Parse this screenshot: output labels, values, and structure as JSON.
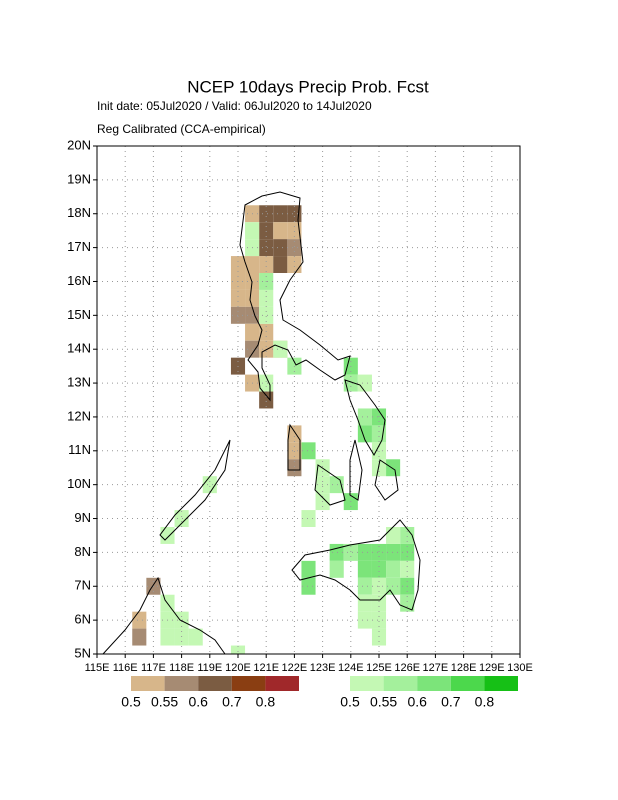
{
  "map": {
    "title": "NCEP 10days Precip Prob. Fcst",
    "subtitle": [
      "Init date: 05Jul2020 / Valid: 06Jul2020 to 14Jul2020",
      "Reg Calibrated (CCA-empirical)"
    ],
    "xlim": [
      115,
      130
    ],
    "ylim": [
      5,
      20
    ],
    "xticks": [
      {
        "value": 115,
        "label": "115E"
      },
      {
        "value": 116,
        "label": "116E"
      },
      {
        "value": 117,
        "label": "117E"
      },
      {
        "value": 118,
        "label": "118E"
      },
      {
        "value": 119,
        "label": "119E"
      },
      {
        "value": 120,
        "label": "120E"
      },
      {
        "value": 121,
        "label": "121E"
      },
      {
        "value": 122,
        "label": "122E"
      },
      {
        "value": 123,
        "label": "123E"
      },
      {
        "value": 124,
        "label": "124E"
      },
      {
        "value": 125,
        "label": "125E"
      },
      {
        "value": 126,
        "label": "126E"
      },
      {
        "value": 127,
        "label": "127E"
      },
      {
        "value": 128,
        "label": "128E"
      },
      {
        "value": 129,
        "label": "129E"
      },
      {
        "value": 130,
        "label": "130E"
      }
    ],
    "yticks": [
      {
        "value": 5,
        "label": "5N"
      },
      {
        "value": 6,
        "label": "6N"
      },
      {
        "value": 7,
        "label": "7N"
      },
      {
        "value": 8,
        "label": "8N"
      },
      {
        "value": 9,
        "label": "9N"
      },
      {
        "value": 10,
        "label": "10N"
      },
      {
        "value": 11,
        "label": "11N"
      },
      {
        "value": 12,
        "label": "12N"
      },
      {
        "value": 13,
        "label": "13N"
      },
      {
        "value": 14,
        "label": "14N"
      },
      {
        "value": 15,
        "label": "15N"
      },
      {
        "value": 16,
        "label": "16N"
      },
      {
        "value": 17,
        "label": "17N"
      },
      {
        "value": 18,
        "label": "18N"
      },
      {
        "value": 19,
        "label": "19N"
      },
      {
        "value": 20,
        "label": "20N"
      }
    ],
    "grid": true,
    "levels": [
      0.5,
      0.55,
      0.6,
      0.7,
      0.8
    ],
    "below": {
      "colors": [
        "#d7b68a",
        "#a68b73",
        "#7b5c42",
        "#8a3e12",
        "#a0282a"
      ],
      "cells": [
        [
          120.5,
          18,
          0.5
        ],
        [
          121,
          18,
          0.6
        ],
        [
          121.5,
          18,
          0.6
        ],
        [
          122,
          18,
          0.6
        ],
        [
          121,
          17.5,
          0.6
        ],
        [
          121.5,
          17.5,
          0.5
        ],
        [
          122,
          17.5,
          0.5
        ],
        [
          121,
          17,
          0.6
        ],
        [
          121.5,
          17,
          0.6
        ],
        [
          122,
          17,
          0.55
        ],
        [
          120,
          16.5,
          0.5
        ],
        [
          120.5,
          16.5,
          0.5
        ],
        [
          121,
          16.5,
          0.5
        ],
        [
          121.5,
          16.5,
          0.6
        ],
        [
          122,
          16.5,
          0.5
        ],
        [
          120,
          16,
          0.5
        ],
        [
          120.5,
          16,
          0.5
        ],
        [
          120,
          15.5,
          0.5
        ],
        [
          120.5,
          15.5,
          0.5
        ],
        [
          120,
          15,
          0.55
        ],
        [
          120.5,
          15,
          0.55
        ],
        [
          120.5,
          14.5,
          0.5
        ],
        [
          121,
          14.5,
          0.5
        ],
        [
          120.5,
          14,
          0.55
        ],
        [
          121,
          14,
          0.5
        ],
        [
          121.5,
          14,
          0.5
        ],
        [
          120,
          13.5,
          0.6
        ],
        [
          120.5,
          13,
          0.5
        ],
        [
          121,
          12.5,
          0.6
        ],
        [
          122,
          11.5,
          0.5
        ],
        [
          122,
          11,
          0.5
        ],
        [
          122,
          10.5,
          0.55
        ],
        [
          117,
          7,
          0.55
        ],
        [
          116.5,
          6,
          0.5
        ],
        [
          116.5,
          5.5,
          0.55
        ]
      ]
    },
    "above": {
      "colors": [
        "#c4f8b4",
        "#a4f09c",
        "#7ce47a",
        "#4cd84c",
        "#16c016"
      ],
      "cells": [
        [
          120.5,
          17.5,
          0.5
        ],
        [
          120.5,
          17,
          0.5
        ],
        [
          121,
          16,
          0.55
        ],
        [
          121,
          15.5,
          0.5
        ],
        [
          121,
          15,
          0.5
        ],
        [
          121.5,
          14,
          0.5
        ],
        [
          122,
          13.5,
          0.55
        ],
        [
          121,
          13,
          0.5
        ],
        [
          124,
          13.5,
          0.6
        ],
        [
          124,
          13,
          0.55
        ],
        [
          124.5,
          13,
          0.5
        ],
        [
          124.5,
          12,
          0.55
        ],
        [
          125,
          12,
          0.6
        ],
        [
          124.5,
          11.5,
          0.6
        ],
        [
          125,
          11.5,
          0.55
        ],
        [
          125,
          11,
          0.5
        ],
        [
          125.5,
          10.5,
          0.6
        ],
        [
          125,
          10.5,
          0.5
        ],
        [
          122.5,
          11,
          0.6
        ],
        [
          123,
          10.5,
          0.5
        ],
        [
          123.5,
          10,
          0.55
        ],
        [
          123,
          10,
          0.5
        ],
        [
          124,
          9.5,
          0.6
        ],
        [
          123,
          9.5,
          0.5
        ],
        [
          122.5,
          9,
          0.5
        ],
        [
          119,
          10,
          0.5
        ],
        [
          118,
          9,
          0.5
        ],
        [
          117.5,
          8.5,
          0.5
        ],
        [
          123.5,
          8,
          0.6
        ],
        [
          124,
          8,
          0.55
        ],
        [
          124.5,
          8,
          0.6
        ],
        [
          125,
          8,
          0.6
        ],
        [
          125.5,
          8,
          0.6
        ],
        [
          126,
          8,
          0.6
        ],
        [
          126,
          8.5,
          0.55
        ],
        [
          125.5,
          8.5,
          0.5
        ],
        [
          123.5,
          7.5,
          0.55
        ],
        [
          124.5,
          7.5,
          0.6
        ],
        [
          125,
          7.5,
          0.6
        ],
        [
          125.5,
          7.5,
          0.55
        ],
        [
          126,
          7.5,
          0.5
        ],
        [
          122.5,
          7.5,
          0.6
        ],
        [
          122.5,
          7,
          0.6
        ],
        [
          124.5,
          7,
          0.55
        ],
        [
          125,
          7,
          0.5
        ],
        [
          125.5,
          7,
          0.55
        ],
        [
          126,
          7,
          0.6
        ],
        [
          124.5,
          6.5,
          0.5
        ],
        [
          125,
          6.5,
          0.5
        ],
        [
          126,
          6.5,
          0.55
        ],
        [
          124.5,
          6,
          0.5
        ],
        [
          125,
          6,
          0.5
        ],
        [
          125,
          5.5,
          0.5
        ],
        [
          117.5,
          6.5,
          0.5
        ],
        [
          117.5,
          6,
          0.5
        ],
        [
          118,
          6,
          0.5
        ],
        [
          117.5,
          5.5,
          0.5
        ],
        [
          118,
          5.5,
          0.5
        ],
        [
          118.5,
          5.5,
          0.5
        ],
        [
          120,
          5,
          0.5
        ]
      ]
    }
  }
}
